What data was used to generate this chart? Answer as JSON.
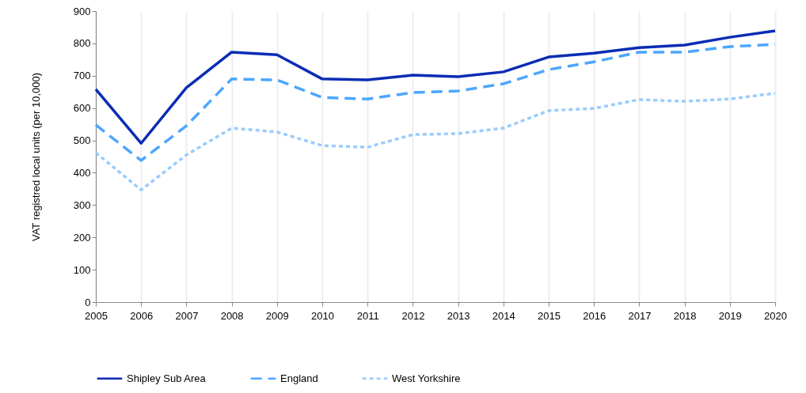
{
  "chart_data": {
    "type": "line",
    "ylabel": "VAT registred local units (per 10,000)",
    "x": [
      2005,
      2006,
      2007,
      2008,
      2009,
      2010,
      2011,
      2012,
      2013,
      2014,
      2015,
      2016,
      2017,
      2018,
      2019,
      2020
    ],
    "xlim": [
      2005,
      2020
    ],
    "xticks": [
      2005,
      2006,
      2007,
      2008,
      2009,
      2010,
      2011,
      2012,
      2013,
      2014,
      2015,
      2016,
      2017,
      2018,
      2019,
      2020
    ],
    "ylim": [
      0,
      900
    ],
    "yticks": [
      0,
      100,
      200,
      300,
      400,
      500,
      600,
      700,
      800,
      900
    ],
    "grid": "x",
    "legend": "bottom",
    "marker": "none",
    "series": [
      {
        "name": "Shipley Sub Area",
        "color": "#0a2db4",
        "line_style": "solid",
        "values": [
          658,
          491,
          663,
          773,
          765,
          690,
          687,
          702,
          697,
          712,
          758,
          770,
          787,
          795,
          819,
          839
        ]
      },
      {
        "name": "England",
        "color": "#4da6ff",
        "line_style": "dashed",
        "values": [
          548,
          438,
          545,
          690,
          687,
          633,
          628,
          648,
          653,
          675,
          719,
          743,
          773,
          773,
          790,
          797
        ]
      },
      {
        "name": "West Yorkshire",
        "color": "#99ccff",
        "line_style": "dotted",
        "values": [
          462,
          347,
          455,
          538,
          526,
          484,
          479,
          518,
          521,
          538,
          592,
          599,
          626,
          621,
          628,
          646
        ]
      }
    ]
  }
}
